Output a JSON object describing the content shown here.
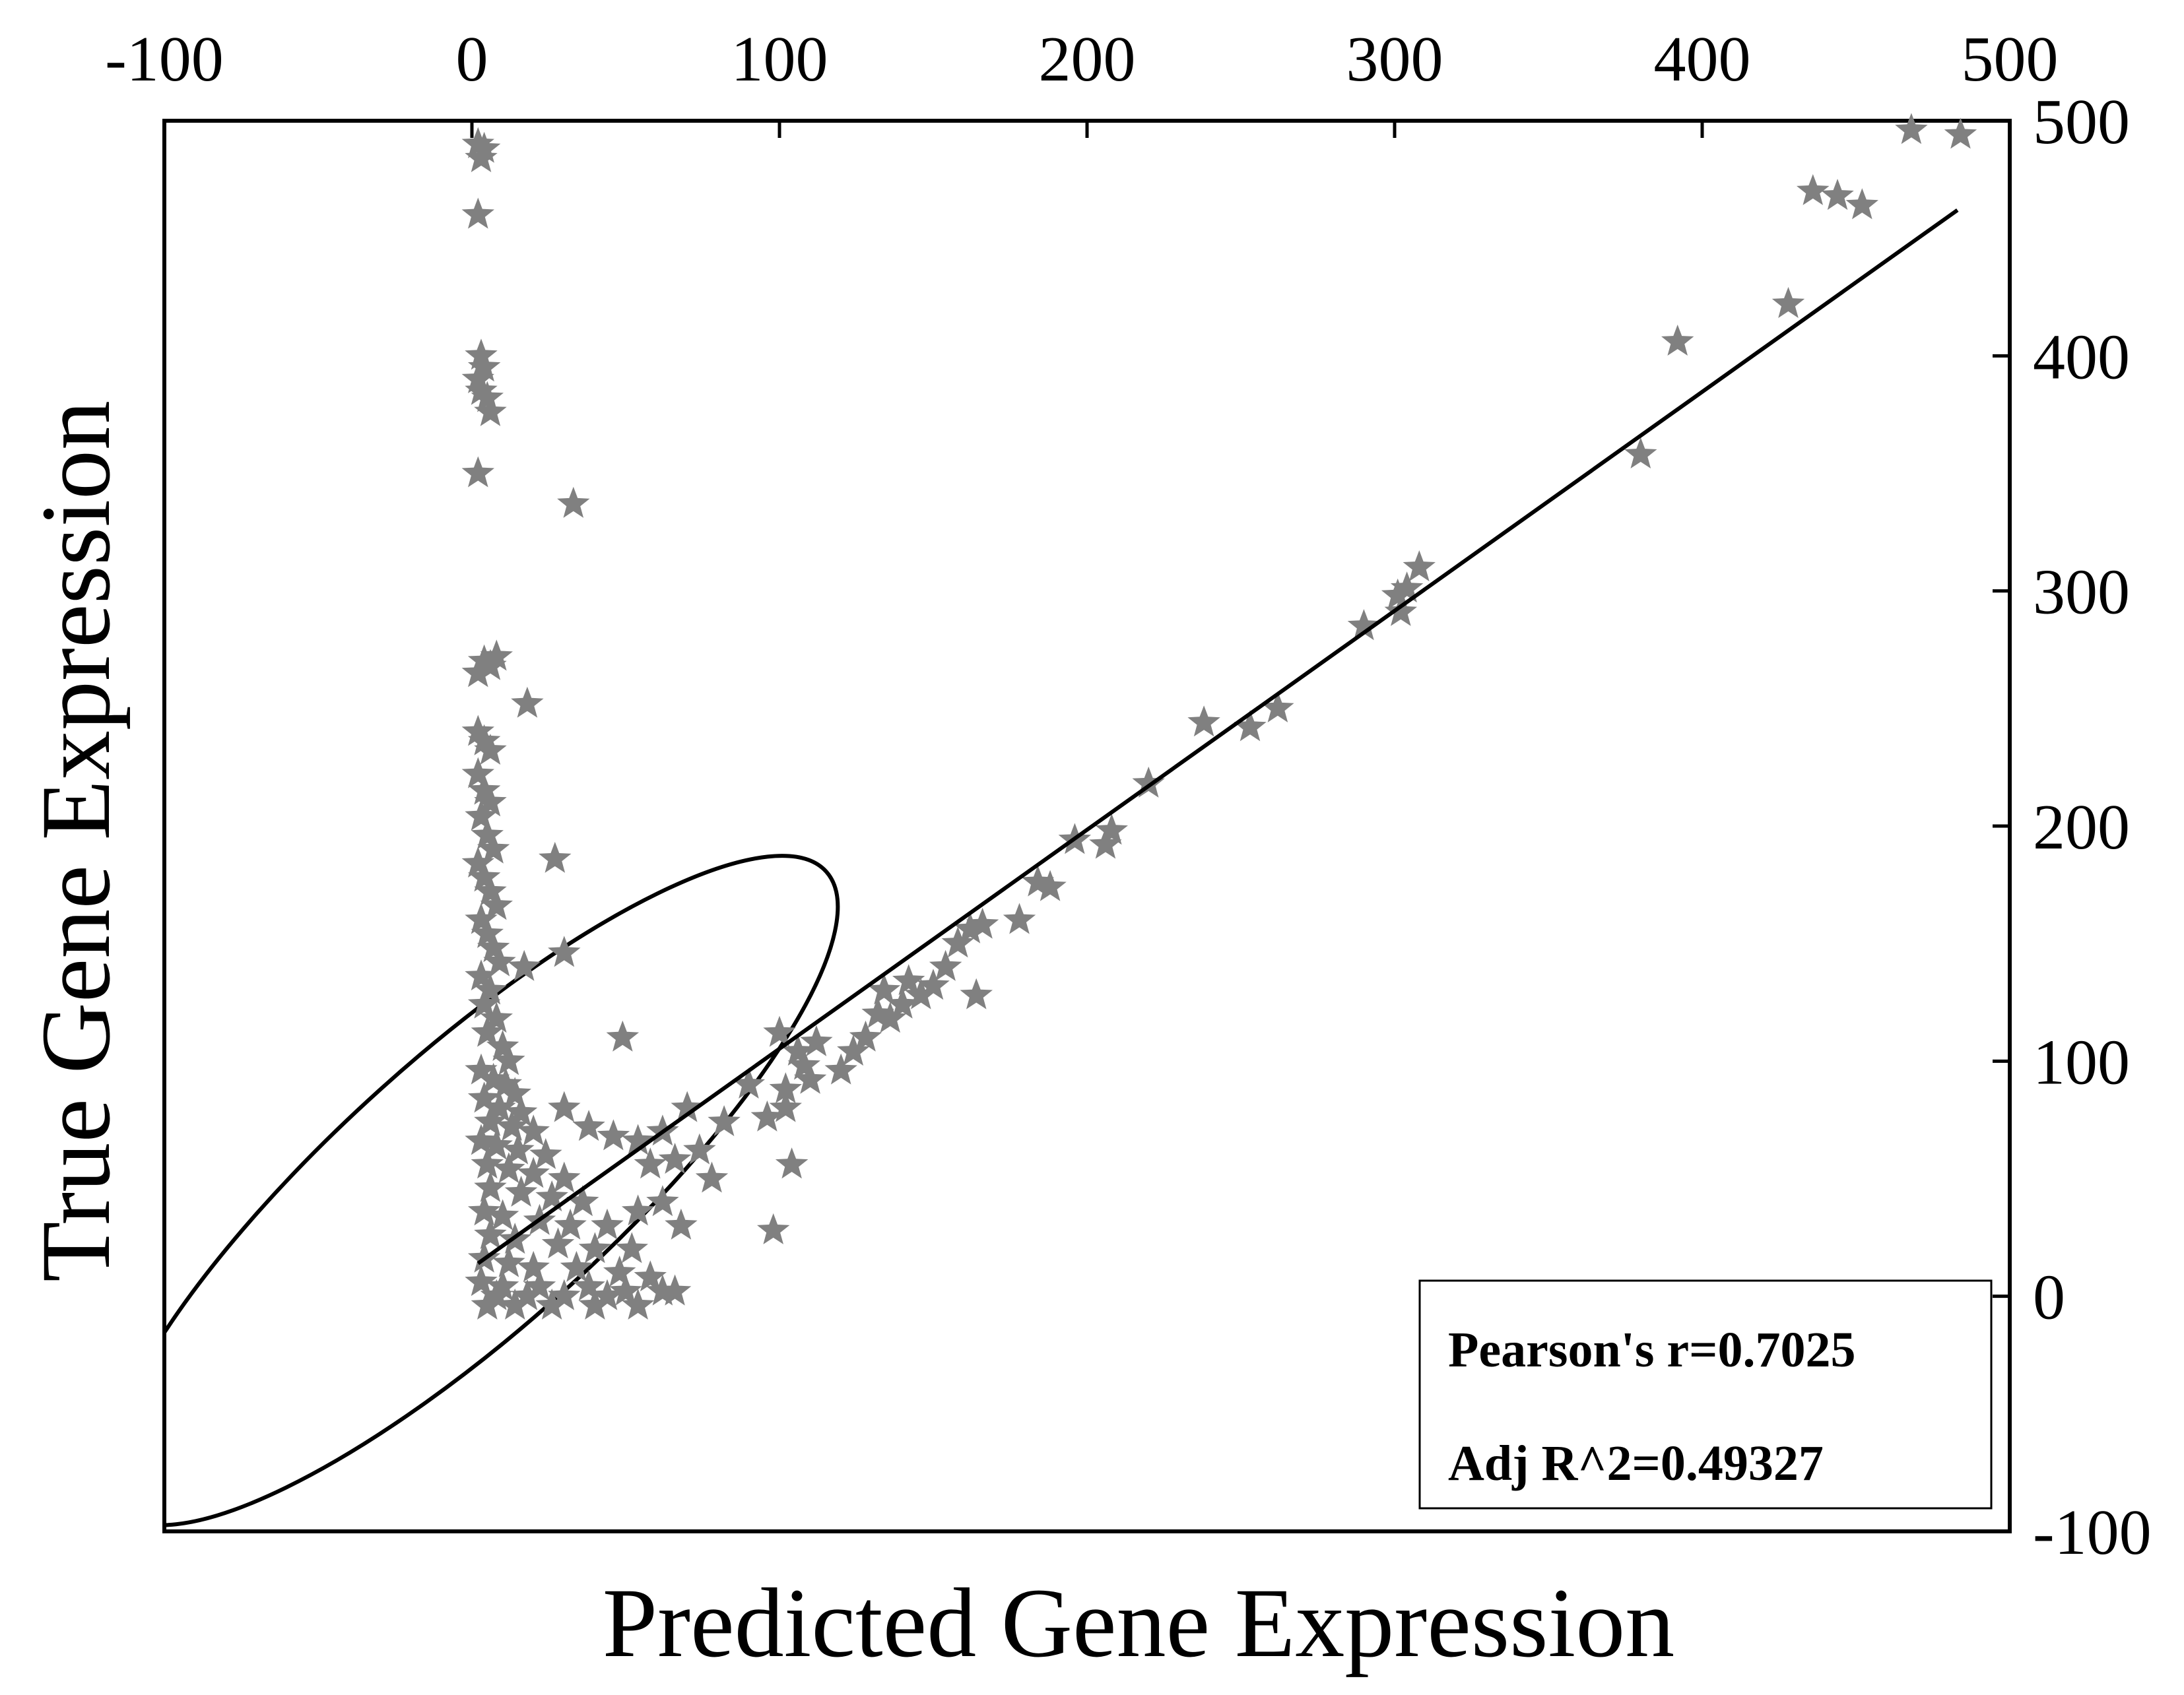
{
  "chart_data": {
    "type": "scatter",
    "title": "",
    "xlabel": "Predicted Gene Expression",
    "ylabel": "True Gene Expression",
    "xlim": [
      -100,
      500
    ],
    "ylim": [
      -100,
      500
    ],
    "x_axis_position": "top",
    "y_axis_position": "right",
    "xticks": [
      "-100",
      "0",
      "100",
      "200",
      "300",
      "400",
      "500"
    ],
    "yticks": [
      "500",
      "400",
      "300",
      "200",
      "100",
      "0",
      "-100"
    ],
    "grid": false,
    "marker": "star",
    "marker_color": "#808080",
    "line_color": "#000000",
    "points": [
      [
        2,
        490
      ],
      [
        3,
        484
      ],
      [
        4,
        488
      ],
      [
        2,
        460
      ],
      [
        3,
        400
      ],
      [
        4,
        395
      ],
      [
        2,
        390
      ],
      [
        3,
        385
      ],
      [
        5,
        382
      ],
      [
        6,
        376
      ],
      [
        2,
        350
      ],
      [
        33,
        337
      ],
      [
        4,
        270
      ],
      [
        6,
        268
      ],
      [
        8,
        272
      ],
      [
        2,
        265
      ],
      [
        18,
        252
      ],
      [
        2,
        240
      ],
      [
        4,
        236
      ],
      [
        6,
        232
      ],
      [
        2,
        222
      ],
      [
        4,
        215
      ],
      [
        6,
        210
      ],
      [
        3,
        204
      ],
      [
        5,
        196
      ],
      [
        7,
        190
      ],
      [
        2,
        184
      ],
      [
        4,
        178
      ],
      [
        6,
        172
      ],
      [
        8,
        166
      ],
      [
        3,
        160
      ],
      [
        5,
        154
      ],
      [
        7,
        148
      ],
      [
        9,
        142
      ],
      [
        3,
        136
      ],
      [
        6,
        130
      ],
      [
        4,
        124
      ],
      [
        8,
        118
      ],
      [
        5,
        112
      ],
      [
        10,
        106
      ],
      [
        12,
        100
      ],
      [
        3,
        96
      ],
      [
        7,
        92
      ],
      [
        11,
        90
      ],
      [
        14,
        86
      ],
      [
        4,
        84
      ],
      [
        9,
        80
      ],
      [
        16,
        78
      ],
      [
        6,
        74
      ],
      [
        13,
        72
      ],
      [
        20,
        70
      ],
      [
        3,
        66
      ],
      [
        8,
        64
      ],
      [
        15,
        62
      ],
      [
        24,
        60
      ],
      [
        5,
        56
      ],
      [
        12,
        54
      ],
      [
        20,
        52
      ],
      [
        30,
        50
      ],
      [
        6,
        46
      ],
      [
        16,
        44
      ],
      [
        26,
        42
      ],
      [
        36,
        40
      ],
      [
        4,
        36
      ],
      [
        10,
        34
      ],
      [
        22,
        32
      ],
      [
        32,
        30
      ],
      [
        44,
        30
      ],
      [
        6,
        26
      ],
      [
        14,
        24
      ],
      [
        28,
        22
      ],
      [
        40,
        20
      ],
      [
        52,
        20
      ],
      [
        4,
        16
      ],
      [
        12,
        14
      ],
      [
        20,
        12
      ],
      [
        34,
        12
      ],
      [
        48,
        10
      ],
      [
        58,
        8
      ],
      [
        3,
        6
      ],
      [
        10,
        4
      ],
      [
        22,
        4
      ],
      [
        38,
        4
      ],
      [
        50,
        2
      ],
      [
        8,
        0
      ],
      [
        18,
        0
      ],
      [
        30,
        0
      ],
      [
        44,
        0
      ],
      [
        5,
        -4
      ],
      [
        14,
        -4
      ],
      [
        26,
        -4
      ],
      [
        40,
        -4
      ],
      [
        54,
        -4
      ],
      [
        62,
        2
      ],
      [
        27,
        186
      ],
      [
        30,
        146
      ],
      [
        17,
        140
      ],
      [
        49,
        110
      ],
      [
        30,
        80
      ],
      [
        38,
        72
      ],
      [
        46,
        68
      ],
      [
        54,
        66
      ],
      [
        62,
        70
      ],
      [
        70,
        80
      ],
      [
        58,
        56
      ],
      [
        66,
        58
      ],
      [
        74,
        62
      ],
      [
        82,
        74
      ],
      [
        90,
        90
      ],
      [
        78,
        50
      ],
      [
        62,
        40
      ],
      [
        54,
        36
      ],
      [
        68,
        30
      ],
      [
        96,
        76
      ],
      [
        102,
        88
      ],
      [
        108,
        98
      ],
      [
        100,
        112
      ],
      [
        106,
        104
      ],
      [
        102,
        80
      ],
      [
        104,
        56
      ],
      [
        98,
        28
      ],
      [
        66,
        2
      ],
      [
        110,
        92
      ],
      [
        112,
        108
      ],
      [
        120,
        96
      ],
      [
        124,
        104
      ],
      [
        128,
        110
      ],
      [
        132,
        120
      ],
      [
        134,
        130
      ],
      [
        136,
        118
      ],
      [
        140,
        124
      ],
      [
        142,
        134
      ],
      [
        146,
        128
      ],
      [
        150,
        132
      ],
      [
        154,
        140
      ],
      [
        158,
        150
      ],
      [
        162,
        156
      ],
      [
        166,
        158
      ],
      [
        164,
        128
      ],
      [
        178,
        160
      ],
      [
        184,
        176
      ],
      [
        188,
        174
      ],
      [
        196,
        194
      ],
      [
        206,
        192
      ],
      [
        208,
        198
      ],
      [
        220,
        218
      ],
      [
        238,
        244
      ],
      [
        253,
        242
      ],
      [
        262,
        250
      ],
      [
        290,
        285
      ],
      [
        301,
        298
      ],
      [
        302,
        291
      ],
      [
        304,
        301
      ],
      [
        308,
        310
      ],
      [
        380,
        358
      ],
      [
        392,
        406
      ],
      [
        428,
        422
      ],
      [
        436,
        470
      ],
      [
        444,
        468
      ],
      [
        452,
        464
      ],
      [
        468,
        496
      ],
      [
        484,
        494
      ]
    ],
    "regression_line": {
      "x": [
        2,
        483
      ],
      "y": [
        14,
        462
      ]
    },
    "ellipse": {
      "cx": 0,
      "cy": 45,
      "rx": 155,
      "ry": 58,
      "angle_deg": 42
    },
    "stats_box": {
      "lines": [
        "Pearson's r=0.7025",
        "Adj R^2=0.49327"
      ],
      "position": "bottom-right"
    }
  }
}
